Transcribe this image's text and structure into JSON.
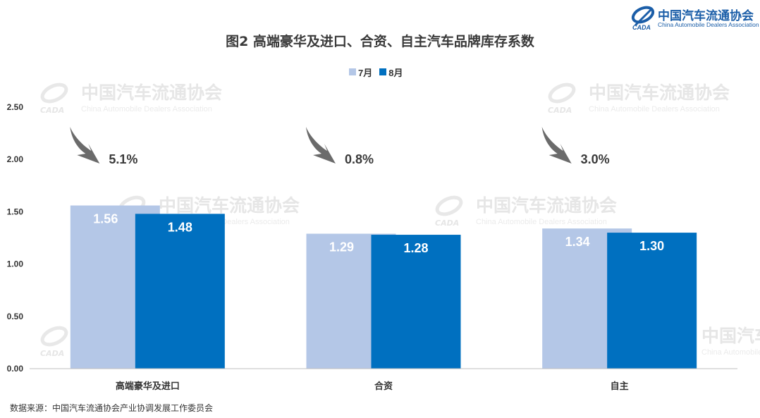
{
  "logo": {
    "cn": "中国汽车流通协会",
    "en": "China Automobile Dealers Association",
    "mark": "CADA"
  },
  "watermark": {
    "cn": "中国汽车流通协会",
    "en": "China Automobile Dealers Association",
    "mark": "CADA"
  },
  "colors": {
    "july": "#b4c7e7",
    "august": "#0070c0",
    "arrow": "#6b6b6b",
    "axis_text": "#333333"
  },
  "source_note": "数据来源：中国汽车流通协会产业协调发展工作委员会",
  "chart_data": {
    "type": "bar",
    "title": "图2  高端豪华及进口、合资、自主汽车品牌库存系数",
    "categories": [
      "高端豪华及进口",
      "合资",
      "自主"
    ],
    "series": [
      {
        "name": "7月",
        "values": [
          1.56,
          1.29,
          1.34
        ],
        "labels": [
          "1.56",
          "1.29",
          "1.34"
        ]
      },
      {
        "name": "8月",
        "values": [
          1.48,
          1.28,
          1.3
        ],
        "labels": [
          "1.48",
          "1.28",
          "1.30"
        ]
      }
    ],
    "ylim": [
      0,
      2.5
    ],
    "yticks": [
      "0.00",
      "0.50",
      "1.00",
      "1.50",
      "2.00",
      "2.50"
    ],
    "annotations": [
      {
        "category": "高端豪华及进口",
        "text": "5.1%",
        "icon": "down-arrow"
      },
      {
        "category": "合资",
        "text": "0.8%",
        "icon": "down-arrow"
      },
      {
        "category": "自主",
        "text": "3.0%",
        "icon": "down-arrow"
      }
    ],
    "legend": "top",
    "grid": false
  }
}
